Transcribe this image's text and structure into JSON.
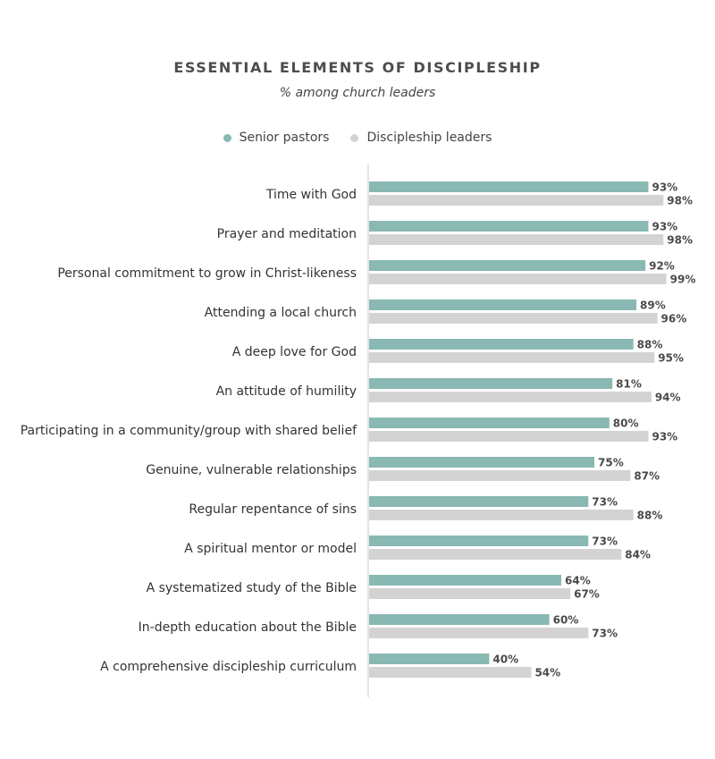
{
  "colors": {
    "senior": "#8ab8b2",
    "discipleship": "#d3d3d4",
    "axis": "#c8c8c8"
  },
  "chart_data": {
    "type": "bar",
    "orientation": "horizontal",
    "title": "ESSENTIAL ELEMENTS OF DISCIPLESHIP",
    "subtitle": "% among church leaders",
    "legend_position": "top",
    "xlim": [
      0,
      100
    ],
    "grid": false,
    "categories": [
      "Time with God",
      "Prayer and meditation",
      "Personal commitment to grow in Christ-likeness",
      "Attending a local church",
      "A deep love for God",
      "An attitude of humility",
      "Participating in a community/group with shared belief",
      "Genuine, vulnerable relationships",
      "Regular repentance of sins",
      "A spiritual mentor or model",
      "A systematized study of the Bible",
      "In-depth education about the Bible",
      "A comprehensive discipleship curriculum"
    ],
    "series": [
      {
        "name": "Senior pastors",
        "values": [
          93,
          93,
          92,
          89,
          88,
          81,
          80,
          75,
          73,
          73,
          64,
          60,
          40
        ]
      },
      {
        "name": "Discipleship leaders",
        "values": [
          98,
          98,
          99,
          96,
          95,
          94,
          93,
          87,
          88,
          84,
          67,
          73,
          54
        ]
      }
    ]
  }
}
